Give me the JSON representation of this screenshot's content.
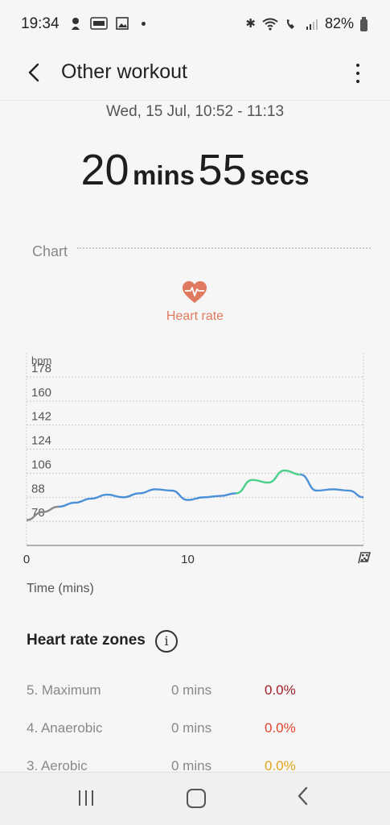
{
  "status_bar": {
    "time": "19:34",
    "battery_percent": "82%",
    "left_icons": [
      "bluetooth-app-icon",
      "news-icon",
      "gallery-icon",
      "dot-icon"
    ],
    "right_icons": [
      "bluetooth-icon",
      "wifi-icon",
      "wifi-call-icon",
      "signal-icon",
      "battery-icon"
    ]
  },
  "header": {
    "title": "Other workout"
  },
  "workout": {
    "date": "Wed, 15 Jul, 10:52 - 11:13",
    "duration_minutes_value": "20",
    "duration_minutes_unit": "mins",
    "duration_seconds_value": "55",
    "duration_seconds_unit": "secs"
  },
  "chart_section": {
    "label": "Chart",
    "metric_label": "Heart rate",
    "metric_color": "#e07a5f",
    "time_axis_label": "Time (mins)"
  },
  "chart_data": {
    "type": "line",
    "title": "",
    "ylabel": "bpm",
    "xlabel": "Time (mins)",
    "y_ticks": [
      70,
      88,
      106,
      124,
      142,
      160,
      178
    ],
    "x_ticks": [
      "0",
      "10"
    ],
    "xlim": [
      0,
      20.9
    ],
    "ylim": [
      52,
      196
    ],
    "series": [
      {
        "values_x": [
          0,
          1,
          2,
          3,
          4,
          5,
          6,
          7,
          8,
          9,
          10,
          11,
          12,
          13,
          14,
          15,
          16,
          17,
          18,
          19,
          20,
          20.9
        ],
        "values_y": [
          71,
          77,
          81,
          84,
          87,
          90,
          88,
          91,
          94,
          93,
          86,
          88,
          89,
          91,
          101,
          99,
          108,
          105,
          93,
          94,
          93,
          88
        ]
      }
    ],
    "grid": true
  },
  "zones": {
    "title": "Heart rate zones",
    "items": [
      {
        "name": "5. Maximum",
        "time": "0 mins",
        "percent": "0.0%",
        "color": "#a01d2a"
      },
      {
        "name": "4. Anaerobic",
        "time": "0 mins",
        "percent": "0.0%",
        "color": "#e0452b"
      },
      {
        "name": "3. Aerobic",
        "time": "0 mins",
        "percent": "0.0%",
        "color": "#e3a51a"
      }
    ]
  }
}
